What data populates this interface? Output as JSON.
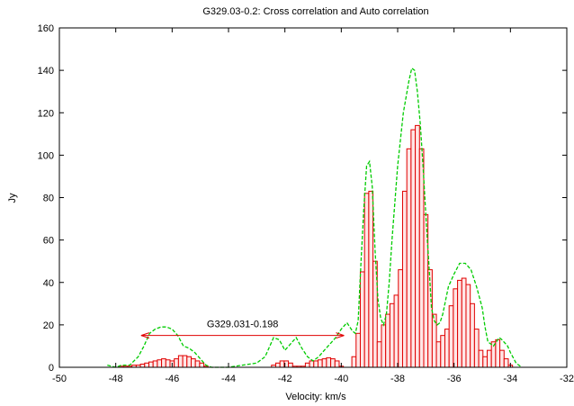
{
  "chart_data": {
    "type": "bar",
    "title": "G329.03-0.2: Cross correlation and Auto correlation",
    "xlabel": "Velocity: km/s",
    "ylabel": "Jy",
    "xlim": [
      -50,
      -32
    ],
    "ylim": [
      0,
      160
    ],
    "xticks": [
      "-50",
      "-48",
      "-46",
      "-44",
      "-42",
      "-40",
      "-38",
      "-36",
      "-34",
      "-32"
    ],
    "yticks": [
      "0",
      "20",
      "40",
      "60",
      "80",
      "100",
      "120",
      "140",
      "160"
    ],
    "grid": false,
    "colors": {
      "bars": "#e00000",
      "line": "#00cc00",
      "annotation": "#e00000",
      "axes": "#000000"
    },
    "series": [
      {
        "style": "histogram-bars",
        "x": [
          -47.8,
          -47.65,
          -47.5,
          -47.35,
          -47.2,
          -47.05,
          -46.9,
          -46.75,
          -46.6,
          -46.45,
          -46.3,
          -46.15,
          -46.0,
          -45.85,
          -45.7,
          -45.55,
          -45.4,
          -45.25,
          -45.1,
          -44.95,
          -44.8,
          -42.4,
          -42.25,
          -42.1,
          -41.95,
          -41.8,
          -41.65,
          -41.5,
          -41.35,
          -41.2,
          -41.05,
          -40.9,
          -40.75,
          -40.6,
          -40.45,
          -40.3,
          -40.15,
          -40.0,
          -39.55,
          -39.4,
          -39.25,
          -39.1,
          -38.95,
          -38.8,
          -38.65,
          -38.5,
          -38.35,
          -38.2,
          -38.05,
          -37.9,
          -37.75,
          -37.6,
          -37.45,
          -37.3,
          -37.15,
          -37.0,
          -36.85,
          -36.7,
          -36.55,
          -36.4,
          -36.25,
          -36.1,
          -35.95,
          -35.8,
          -35.65,
          -35.5,
          -35.35,
          -35.2,
          -35.05,
          -34.9,
          -34.75,
          -34.6,
          -34.45,
          -34.3,
          -34.15,
          -34.0
        ],
        "y": [
          0.5,
          0.5,
          0.5,
          1,
          1,
          1.5,
          2,
          2.5,
          3,
          3.5,
          4,
          3.5,
          3,
          4,
          5.5,
          5.5,
          5,
          4,
          3,
          2,
          0.5,
          1,
          2,
          3,
          3,
          2,
          0.5,
          0.5,
          0.5,
          2,
          3,
          3,
          3.5,
          4,
          4.5,
          4,
          3,
          0.5,
          5,
          16,
          45,
          82,
          83,
          50,
          12,
          20,
          25,
          30,
          34,
          46,
          83,
          103,
          112,
          114,
          103,
          72,
          46,
          25,
          12,
          15,
          18,
          29,
          37,
          41,
          42,
          39,
          30,
          18,
          8,
          5,
          8,
          12,
          13,
          8,
          4,
          1
        ]
      },
      {
        "style": "dashed-line",
        "x": [
          -48.3,
          -48.0,
          -47.8,
          -47.5,
          -47.2,
          -47.0,
          -46.8,
          -46.6,
          -46.4,
          -46.2,
          -46.0,
          -45.8,
          -45.6,
          -45.4,
          -45.2,
          -45.0,
          -44.8,
          -44.6,
          -44.4,
          -44.0,
          -43.5,
          -43.0,
          -42.7,
          -42.4,
          -42.2,
          -42.0,
          -41.8,
          -41.6,
          -41.4,
          -41.2,
          -41.0,
          -40.8,
          -40.6,
          -40.4,
          -40.2,
          -40.0,
          -39.8,
          -39.6,
          -39.5,
          -39.4,
          -39.3,
          -39.2,
          -39.1,
          -39.0,
          -38.9,
          -38.8,
          -38.7,
          -38.6,
          -38.5,
          -38.4,
          -38.3,
          -38.2,
          -38.0,
          -37.8,
          -37.6,
          -37.5,
          -37.4,
          -37.3,
          -37.2,
          -37.1,
          -37.0,
          -36.9,
          -36.8,
          -36.7,
          -36.6,
          -36.5,
          -36.4,
          -36.2,
          -36.0,
          -35.8,
          -35.6,
          -35.4,
          -35.2,
          -35.0,
          -34.9,
          -34.8,
          -34.6,
          -34.4,
          -34.3,
          -34.1,
          -34.0,
          -33.8,
          -33.6
        ],
        "y": [
          1,
          0,
          1,
          1,
          5,
          10,
          16,
          18,
          19,
          19,
          18,
          15,
          10,
          9,
          7,
          4,
          1,
          0,
          0,
          0,
          1,
          2,
          5,
          14,
          13,
          8,
          11,
          14,
          9,
          5,
          3,
          5,
          8,
          11,
          14,
          18,
          21,
          17,
          16,
          22,
          50,
          75,
          95,
          97,
          85,
          55,
          32,
          23,
          20,
          25,
          40,
          60,
          95,
          120,
          135,
          141,
          140,
          130,
          115,
          95,
          72,
          50,
          28,
          22,
          20,
          21,
          25,
          38,
          44,
          49,
          49,
          46,
          38,
          28,
          19,
          12,
          10,
          14,
          13,
          10,
          7,
          2,
          0
        ]
      }
    ],
    "annotations": [
      {
        "text": "G329.031-0.198",
        "arrow_from_x": -47.1,
        "arrow_to_x": -39.9,
        "arrow_y": 15
      }
    ]
  }
}
